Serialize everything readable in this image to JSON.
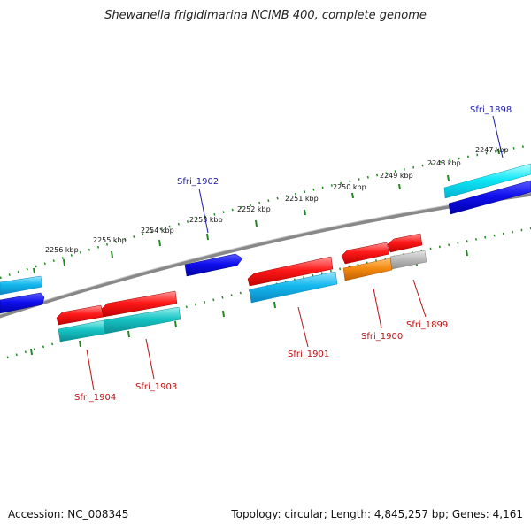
{
  "title": "Shewanella frigidimarina NCIMB 400, complete genome",
  "footer": {
    "accession": "Accession: NC_008345",
    "topology": "Topology: circular; Length: 4,845,257 bp; Genes: 4,161"
  },
  "ticks": [
    "2247 kbp",
    "2248 kbp",
    "2249 kbp",
    "2250 kbp",
    "2251 kbp",
    "2252 kbp",
    "2253 kbp",
    "2254 kbp",
    "2255 kbp",
    "2256 kbp"
  ],
  "labels_outer": [
    "Sfri_1898",
    "Sfri_1902"
  ],
  "labels_inner": [
    "Sfri_1899",
    "Sfri_1900",
    "Sfri_1901",
    "Sfri_1903",
    "Sfri_1904"
  ],
  "colors": {
    "forward_label": "#1a1aaa",
    "reverse_label": "#bb1111",
    "cds_red": "#ee1111",
    "cds_blue": "#1111dd",
    "cds_cyan": "#22ddee",
    "cds_teal": "#22bbbb",
    "cds_orange": "#ee8811",
    "cds_gray": "#b8b8b8",
    "backbone": "#888888",
    "tick_green": "#228822"
  }
}
